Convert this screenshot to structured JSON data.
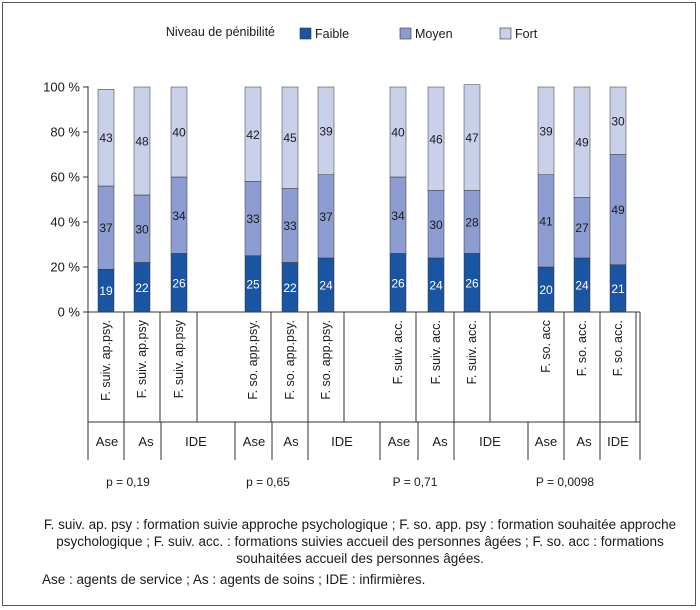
{
  "colors": {
    "faible": "#1a55a3",
    "moyen": "#8d9cd1",
    "fort": "#c9d0ea",
    "axis": "#333333",
    "text": "#1a1a1a"
  },
  "chart_data": {
    "type": "bar",
    "stacked": true,
    "percent": true,
    "legend_title": "Niveau de pénibilité",
    "legend_position": "top",
    "ylim": [
      0,
      100
    ],
    "y_ticks": [
      {
        "value": 0,
        "label": "0 %"
      },
      {
        "value": 20,
        "label": "20 %"
      },
      {
        "value": 40,
        "label": "40 %"
      },
      {
        "value": 60,
        "label": "60 %"
      },
      {
        "value": 80,
        "label": "80 %"
      },
      {
        "value": 100,
        "label": "100 %"
      }
    ],
    "grid": false,
    "series": [
      {
        "name": "Faible",
        "color_key": "faible",
        "values": [
          19,
          22,
          26,
          25,
          22,
          24,
          26,
          24,
          26,
          20,
          24,
          21
        ]
      },
      {
        "name": "Moyen",
        "color_key": "moyen",
        "values": [
          37,
          30,
          34,
          33,
          33,
          37,
          34,
          30,
          28,
          41,
          27,
          49
        ]
      },
      {
        "name": "Fort",
        "color_key": "fort",
        "values": [
          43,
          48,
          40,
          42,
          45,
          39,
          40,
          46,
          47,
          39,
          49,
          30
        ]
      }
    ],
    "categories": [
      "F. suiv. ap.psy.",
      "F. suiv. ap.psy",
      "F. suiv. ap.psy",
      "F. so. app.psy.",
      "F. so. app.psy.",
      "F. so. app.psy.",
      "F. suiv. acc.",
      "F. suiv. acc.",
      "F. suiv. acc.",
      "F. so.  acc",
      "F. so. acc.",
      "F. so. acc."
    ],
    "roles": [
      "Ase",
      "As",
      "IDE",
      "Ase",
      "As",
      "IDE",
      "Ase",
      "As",
      "IDE",
      "Ase",
      "As",
      "IDE"
    ],
    "group_pvalues": [
      "p = 0,19",
      "p = 0,65",
      "P = 0,71",
      "P = 0,0098"
    ]
  },
  "notes": {
    "definitions": "F. suiv. ap. psy : formation suivie approche psychologique ; F. so. app. psy : formation souhaitée approche psychologique ; F. suiv. acc. : formations suivies accueil des personnes âgées ; F. so. acc : formations souhaitées accueil des personnes âgées.",
    "abbreviations": "Ase : agents de service ; As : agents de soins ; IDE : infirmières."
  }
}
